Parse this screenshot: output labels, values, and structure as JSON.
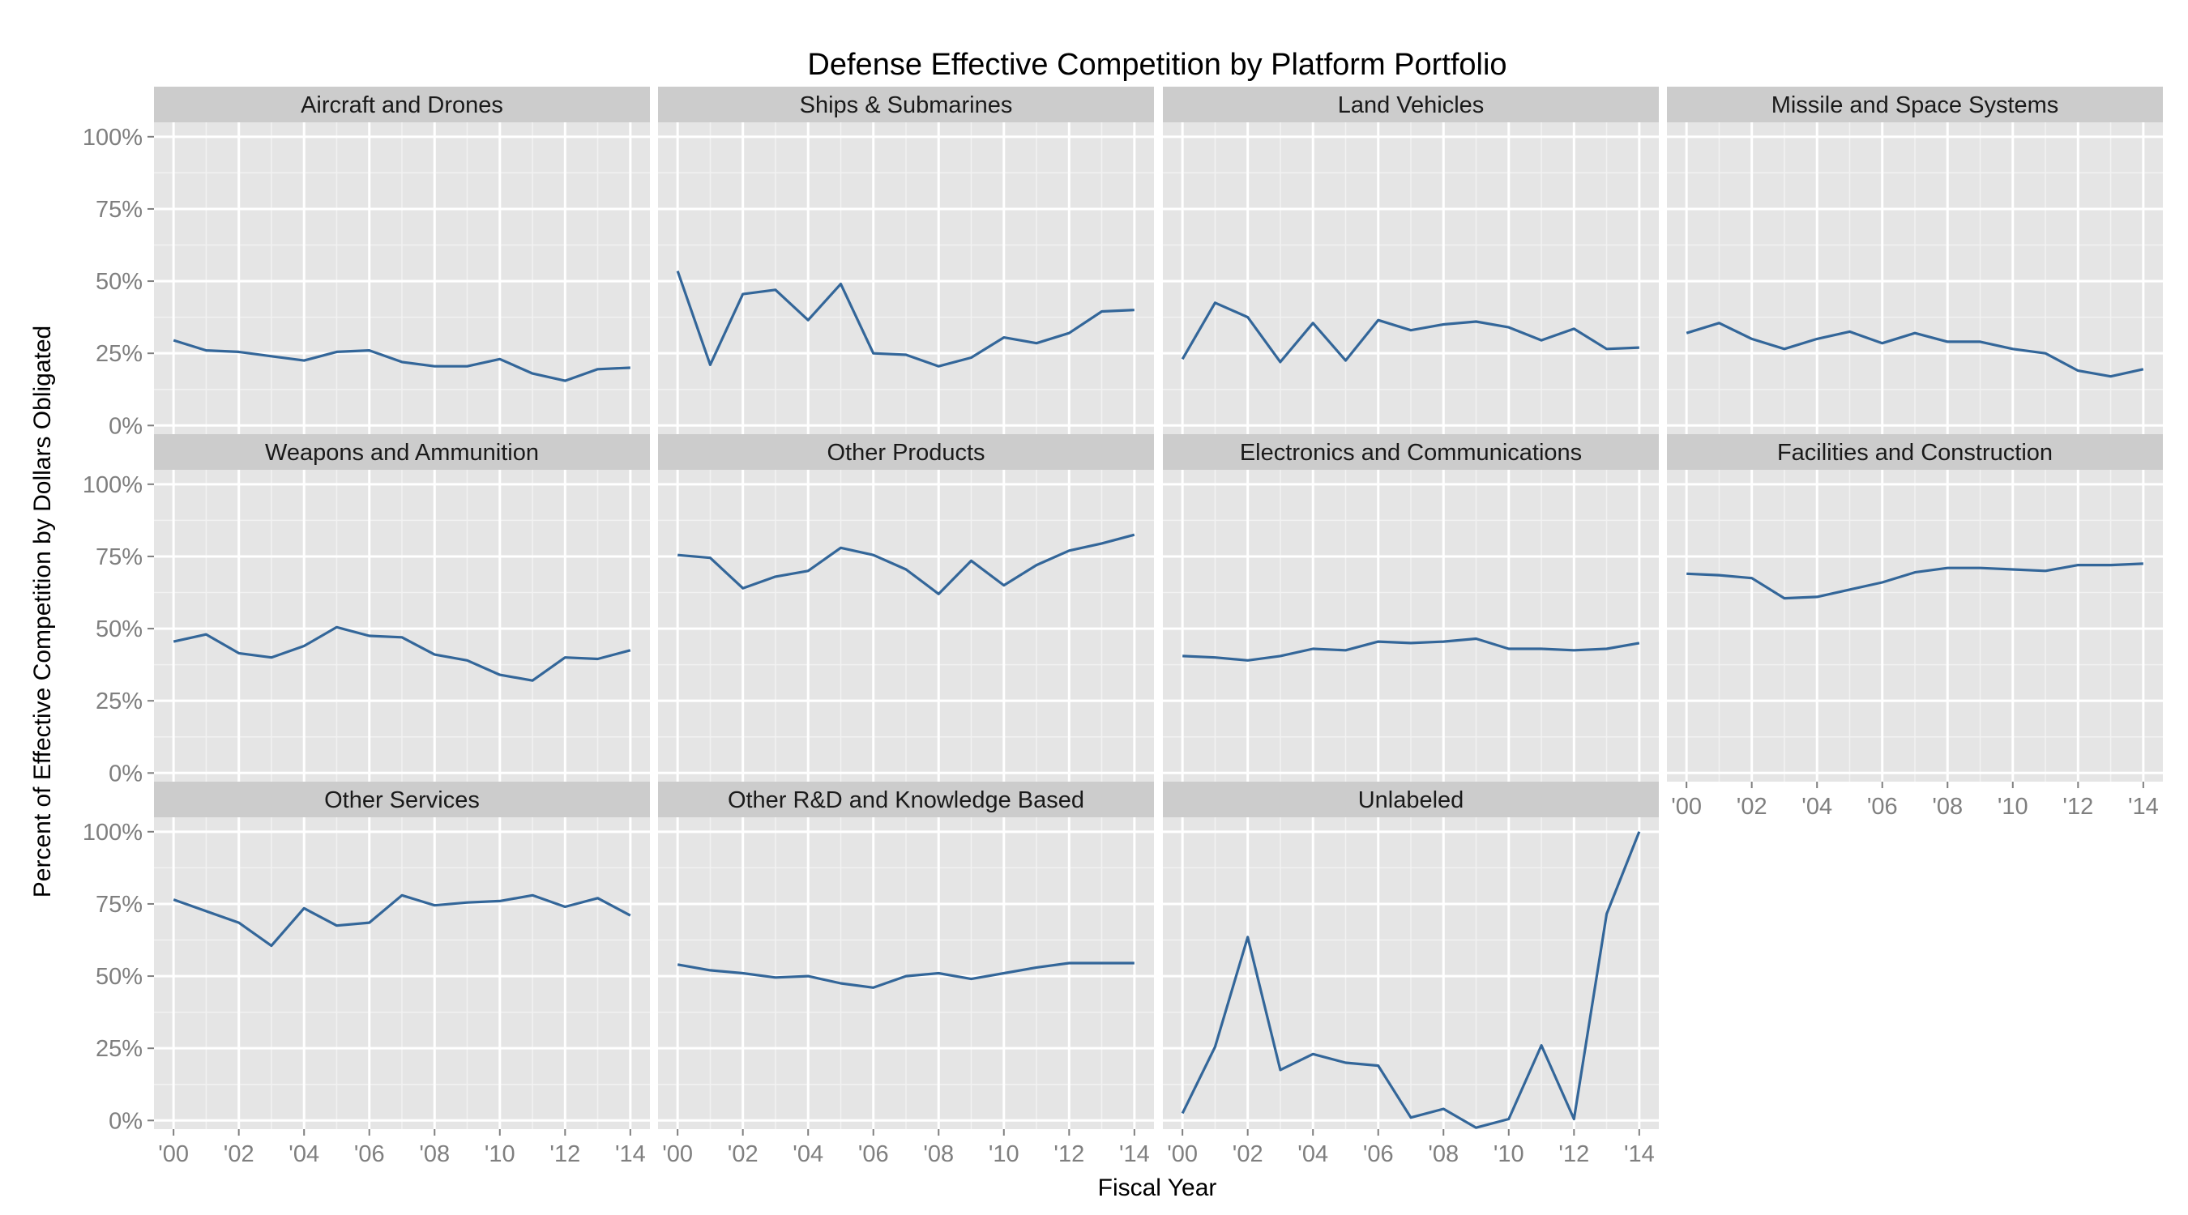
{
  "chart_data": {
    "type": "line",
    "layout": "facet-grid",
    "title": "Defense Effective Competition by Platform Portfolio",
    "xlabel": "Fiscal Year",
    "ylabel": "Percent of Effective Competition by Dollars Obligated",
    "x": [
      2000,
      2001,
      2002,
      2003,
      2004,
      2005,
      2006,
      2007,
      2008,
      2009,
      2010,
      2011,
      2012,
      2013,
      2014
    ],
    "x_ticks": [
      "'00",
      "'02",
      "'04",
      "'06",
      "'08",
      "'10",
      "'12",
      "'14"
    ],
    "y_ticks": [
      "0%",
      "25%",
      "50%",
      "75%",
      "100%"
    ],
    "ylim": [
      -0.03,
      1.05
    ],
    "line_color": "#336699",
    "panel_background": "#e5e5e5",
    "strip_background": "#cccccc",
    "grid": true,
    "panels": [
      {
        "name": "Aircraft and Drones",
        "values": [
          0.295,
          0.26,
          0.255,
          0.24,
          0.225,
          0.255,
          0.26,
          0.22,
          0.205,
          0.205,
          0.23,
          0.18,
          0.155,
          0.195,
          0.2
        ]
      },
      {
        "name": "Ships & Submarines",
        "values": [
          0.535,
          0.21,
          0.455,
          0.47,
          0.365,
          0.49,
          0.25,
          0.245,
          0.205,
          0.235,
          0.305,
          0.285,
          0.32,
          0.395,
          0.4
        ]
      },
      {
        "name": "Land Vehicles",
        "values": [
          0.23,
          0.425,
          0.375,
          0.22,
          0.355,
          0.225,
          0.365,
          0.33,
          0.35,
          0.36,
          0.34,
          0.295,
          0.335,
          0.265,
          0.27
        ]
      },
      {
        "name": "Missile and Space Systems",
        "values": [
          0.32,
          0.355,
          0.3,
          0.265,
          0.3,
          0.325,
          0.285,
          0.32,
          0.29,
          0.29,
          0.265,
          0.25,
          0.19,
          0.17,
          0.195
        ]
      },
      {
        "name": "Weapons and Ammunition",
        "values": [
          0.455,
          0.48,
          0.415,
          0.4,
          0.44,
          0.505,
          0.475,
          0.47,
          0.41,
          0.39,
          0.34,
          0.32,
          0.4,
          0.395,
          0.425
        ]
      },
      {
        "name": "Other Products",
        "values": [
          0.755,
          0.745,
          0.64,
          0.68,
          0.7,
          0.78,
          0.755,
          0.705,
          0.62,
          0.735,
          0.65,
          0.72,
          0.77,
          0.795,
          0.825
        ]
      },
      {
        "name": "Electronics and Communications",
        "values": [
          0.405,
          0.4,
          0.39,
          0.405,
          0.43,
          0.425,
          0.455,
          0.45,
          0.455,
          0.465,
          0.43,
          0.43,
          0.425,
          0.43,
          0.45
        ]
      },
      {
        "name": "Facilities and Construction",
        "values": [
          0.69,
          0.685,
          0.675,
          0.605,
          0.61,
          0.635,
          0.66,
          0.695,
          0.71,
          0.71,
          0.705,
          0.7,
          0.72,
          0.72,
          0.725
        ]
      },
      {
        "name": "Other Services",
        "values": [
          0.765,
          0.725,
          0.685,
          0.605,
          0.735,
          0.675,
          0.685,
          0.78,
          0.745,
          0.755,
          0.76,
          0.78,
          0.74,
          0.77,
          0.71
        ]
      },
      {
        "name": "Other R&D and Knowledge Based",
        "values": [
          0.54,
          0.52,
          0.51,
          0.495,
          0.5,
          0.475,
          0.46,
          0.5,
          0.51,
          0.49,
          0.51,
          0.53,
          0.545,
          0.545,
          0.545
        ]
      },
      {
        "name": "Unlabeled",
        "values": [
          0.025,
          0.255,
          0.635,
          0.175,
          0.23,
          0.2,
          0.19,
          0.01,
          0.04,
          -0.025,
          0.005,
          0.26,
          0.005,
          0.715,
          1.0
        ]
      }
    ]
  }
}
